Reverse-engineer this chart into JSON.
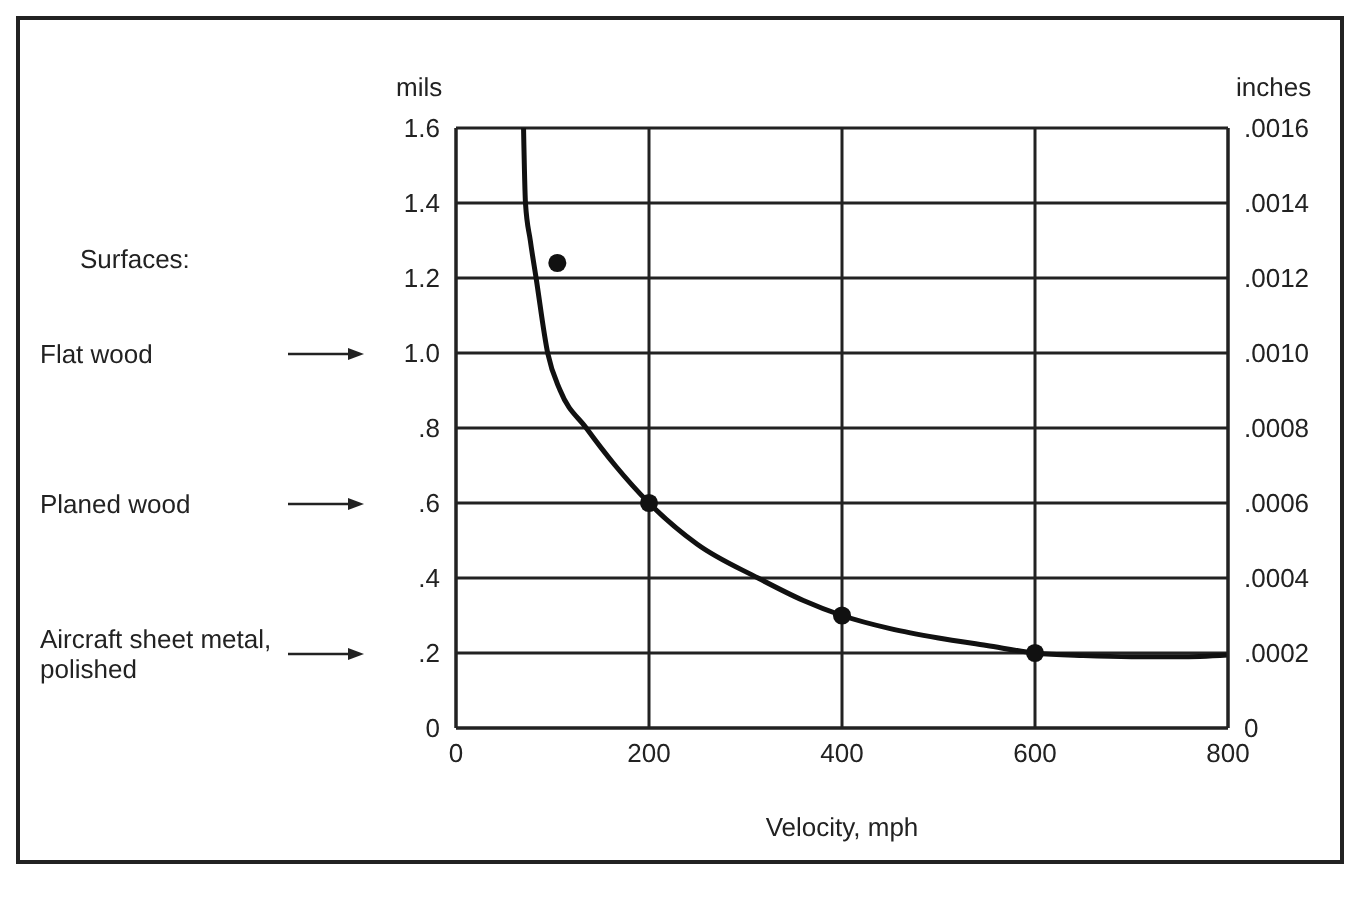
{
  "chart_data": {
    "type": "line",
    "xlabel": "Velocity, mph",
    "ylabel": "mils",
    "y2label": "inches",
    "xlim": [
      0,
      800
    ],
    "xticks": [
      0,
      200,
      400,
      600,
      800
    ],
    "ylim": [
      0,
      1.6
    ],
    "yticks": [
      0,
      {
        "value": 0.2,
        "label": ".2"
      },
      {
        "value": 0.4,
        "label": ".4"
      },
      {
        "value": 0.6,
        "label": ".6"
      },
      {
        "value": 0.8,
        "label": ".8"
      },
      {
        "value": 1,
        "label": "1.0"
      },
      1.2,
      1.4,
      1.6
    ],
    "y2lim": [
      0,
      0.0016
    ],
    "y2ticks": [
      0,
      {
        "value": 0.0002,
        "label": ".0002"
      },
      {
        "value": 0.0004,
        "label": ".0004"
      },
      {
        "value": 0.0006,
        "label": ".0006"
      },
      {
        "value": 0.0008,
        "label": ".0008"
      },
      {
        "value": 0.001,
        "label": ".0010"
      },
      {
        "value": 0.0012,
        "label": ".0012"
      },
      {
        "value": 0.0014,
        "label": ".0014"
      },
      {
        "value": 0.0016,
        "label": ".0016"
      }
    ],
    "grid": true,
    "marker": "none",
    "line_style": "solid",
    "series": [
      {
        "color": "#111111",
        "x": [
          70,
          72,
          77,
          83,
          95,
          108,
          135,
          165,
          200,
          250,
          313,
          360,
          400,
          450,
          500,
          550,
          600,
          650,
          700,
          750,
          800
        ],
        "values": [
          1.6,
          1.4,
          1.3,
          1.2,
          1.0,
          0.9,
          0.8,
          0.7,
          0.6,
          0.49,
          0.4,
          0.34,
          0.3,
          0.265,
          0.24,
          0.22,
          0.2,
          0.193,
          0.19,
          0.19,
          0.195
        ]
      },
      {
        "type": "scatter",
        "color": "#111111",
        "marker": "circle",
        "x": [
          105,
          200,
          400,
          600
        ],
        "values": [
          1.24,
          0.6,
          0.3,
          0.2
        ]
      }
    ],
    "annotations": [
      "Surfaces:",
      "Flat wood",
      "Planed wood",
      "Aircraft sheet metal, polished"
    ]
  }
}
